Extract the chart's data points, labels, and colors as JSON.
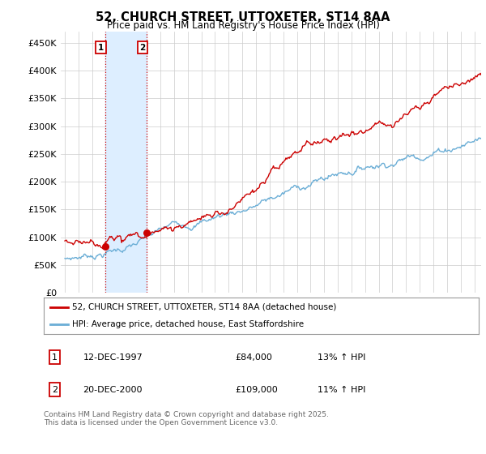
{
  "title": "52, CHURCH STREET, UTTOXETER, ST14 8AA",
  "subtitle": "Price paid vs. HM Land Registry's House Price Index (HPI)",
  "legend_label_red": "52, CHURCH STREET, UTTOXETER, ST14 8AA (detached house)",
  "legend_label_blue": "HPI: Average price, detached house, East Staffordshire",
  "footnote": "Contains HM Land Registry data © Crown copyright and database right 2025.\nThis data is licensed under the Open Government Licence v3.0.",
  "table_rows": [
    {
      "num": "1",
      "date": "12-DEC-1997",
      "price": "£84,000",
      "hpi": "13% ↑ HPI"
    },
    {
      "num": "2",
      "date": "20-DEC-2000",
      "price": "£109,000",
      "hpi": "11% ↑ HPI"
    }
  ],
  "marker1_x": 1997.95,
  "marker1_y": 84000,
  "marker2_x": 2001.0,
  "marker2_y": 109000,
  "red_color": "#cc0000",
  "blue_color": "#6baed6",
  "shade_color": "#ddeeff",
  "vline_color": "#cc0000",
  "background_color": "#ffffff",
  "grid_color": "#cccccc",
  "ylim": [
    0,
    470000
  ],
  "yticks": [
    0,
    50000,
    100000,
    150000,
    200000,
    250000,
    300000,
    350000,
    400000,
    450000
  ],
  "xlim_left": 1994.7,
  "xlim_right": 2025.5
}
